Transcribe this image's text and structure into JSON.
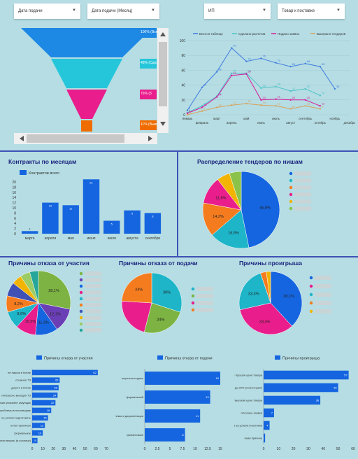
{
  "filters": [
    {
      "label": "Дата подачи"
    },
    {
      "label": "Дата подачи (Месяц)"
    },
    {
      "label": "ИП"
    },
    {
      "label": "Товар к поставке"
    }
  ],
  "funnel": {
    "labels": [
      {
        "text": "100% (Всего в",
        "color": "#1e88e5"
      },
      {
        "text": "48% (Сделано",
        "color": "#26c6da"
      },
      {
        "text": "76% (3",
        "color": "#e91e8c"
      },
      {
        "text": "11% (Выигр",
        "color": "#ef6c00"
      }
    ]
  },
  "chart_data": [
    {
      "type": "line",
      "categories": [
        "январь",
        "февраль",
        "март",
        "апрель",
        "май",
        "июнь",
        "июль",
        "август",
        "сентябрь",
        "октябрь",
        "ноябрь",
        "декабрь"
      ],
      "ylim": [
        0,
        100
      ],
      "yticks": [
        0,
        20,
        40,
        60,
        80,
        100
      ],
      "series": [
        {
          "name": "Всего в таблице",
          "color": "#3f7be0",
          "values": [
            6,
            37,
            58,
            90,
            72,
            76,
            70,
            65,
            69,
            65,
            35,
            null
          ]
        },
        {
          "name": "Сделано расчетов",
          "color": "#4fc3c8",
          "values": [
            3,
            12,
            25,
            56,
            56,
            36,
            38,
            32,
            35,
            26,
            null,
            null
          ]
        },
        {
          "name": "Подано заявок",
          "color": "#d81b9c",
          "values": [
            2,
            10,
            24,
            53,
            55,
            20,
            21,
            20,
            20,
            12,
            null,
            null
          ]
        },
        {
          "name": "Выиграно тендеров",
          "color": "#d8a15a",
          "values": [
            0,
            5,
            10,
            13,
            15,
            13,
            12,
            8,
            12,
            8,
            null,
            null
          ]
        }
      ]
    },
    {
      "type": "bar",
      "title": "Контракты по месяцам",
      "legend": "Контрактов всего",
      "categories": [
        "марта",
        "апреля",
        "мая",
        "июня",
        "июля",
        "августа",
        "сентября"
      ],
      "values": [
        1,
        12,
        11,
        21,
        5,
        9,
        8
      ],
      "ylim": [
        0,
        20
      ],
      "yticks": [
        0,
        2,
        4,
        6,
        8,
        10,
        12,
        14,
        16,
        18,
        20
      ]
    },
    {
      "type": "pie",
      "title": "Распределение тендеров по нишам",
      "slices": [
        {
          "value": 46.8,
          "label": "46,8%",
          "color": "#1565e0"
        },
        {
          "value": 16.9,
          "label": "16,9%",
          "color": "#1eb5c9"
        },
        {
          "value": 14.2,
          "label": "14,2%",
          "color": "#f47c1f"
        },
        {
          "value": 11.6,
          "label": "11,6%",
          "color": "#e91e8c"
        },
        {
          "value": 5.5,
          "label": "",
          "color": "#f2b400"
        },
        {
          "value": 5.0,
          "label": "",
          "color": "#8bc34a"
        }
      ]
    },
    {
      "type": "pie",
      "title": "Причины отказа от участия",
      "slices": [
        {
          "value": 28.1,
          "label": "28,1%",
          "color": "#7cb342"
        },
        {
          "value": 12.1,
          "label": "12,1%",
          "color": "#6a3fb5"
        },
        {
          "value": 11.3,
          "label": "11,3%",
          "color": "#1565e0"
        },
        {
          "value": 10.3,
          "label": "10,3%",
          "color": "#e91e8c"
        },
        {
          "value": 8.6,
          "label": "8,6%",
          "color": "#1eb5c9"
        },
        {
          "value": 8.2,
          "label": "8,2%",
          "color": "#f47c1f"
        },
        {
          "value": 7,
          "label": "",
          "color": "#3f51b5"
        },
        {
          "value": 5,
          "label": "",
          "color": "#f2b400"
        },
        {
          "value": 5,
          "label": "",
          "color": "#9ccc65"
        },
        {
          "value": 4.4,
          "label": "",
          "color": "#26a69a"
        }
      ]
    },
    {
      "type": "pie",
      "title": "Причины отказа от подачи",
      "slices": [
        {
          "value": 30,
          "label": "30%",
          "color": "#1eb5c9"
        },
        {
          "value": 24,
          "label": "24%",
          "color": "#7cb342"
        },
        {
          "value": 22,
          "label": "",
          "color": "#e91e8c"
        },
        {
          "value": 24,
          "label": "24%",
          "color": "#f47c1f"
        }
      ]
    },
    {
      "type": "pie",
      "title": "Причины проигрыша",
      "slices": [
        {
          "value": 38.1,
          "label": "38,1%",
          "color": "#1565e0"
        },
        {
          "value": 33.4,
          "label": "33,4%",
          "color": "#e91e8c"
        },
        {
          "value": 23.3,
          "label": "23,3%",
          "color": "#1eb5c9"
        },
        {
          "value": 3,
          "label": "",
          "color": "#f47c1f"
        },
        {
          "value": 2.2,
          "label": "",
          "color": "#f2b400"
        }
      ]
    },
    {
      "type": "bar",
      "orientation": "horizontal",
      "legend": "Причины отказа от участия",
      "categories": [
        "не нашли в Китае",
        "сложное ТЗ",
        "дорого в Китае",
        "интересно выгодно ТЗ",
        "завязан уникален закупщик",
        "проблемы в поставщике",
        "не успели подготовить",
        "котел-оригинал",
        "формальное",
        "малая маржа, (в рознице)"
      ],
      "values": [
        62,
        26,
        25,
        24,
        22,
        18,
        15,
        12,
        10,
        5
      ],
      "xlim": [
        0,
        70
      ],
      "xticks": [
        0,
        10,
        20,
        30,
        40,
        50,
        60,
        70
      ]
    },
    {
      "type": "bar",
      "orientation": "horizontal",
      "legend": "Причины отказа от подачи",
      "categories": [
        "неуспели подать",
        "формальный",
        "проблемы в документации",
        "финансовые"
      ],
      "values": [
        15,
        13,
        11,
        8
      ],
      "xlim": [
        0,
        15
      ],
      "xticks": [
        0,
        2.5,
        5,
        7.5,
        10,
        12.5,
        15
      ]
    },
    {
      "type": "bar",
      "orientation": "horizontal",
      "legend": "Причины проигрыша",
      "categories": [
        "не прошли цена товара",
        "не стали падать до 20% (госконтракт)",
        "очень высокая цена товара",
        "отклонен заявка",
        "-15% за успели участники",
        "иная причина"
      ],
      "values": [
        57,
        50,
        38,
        7,
        4,
        1
      ],
      "xlim": [
        0,
        60
      ],
      "xticks": [
        0,
        10,
        20,
        30,
        40,
        50,
        60
      ]
    }
  ]
}
